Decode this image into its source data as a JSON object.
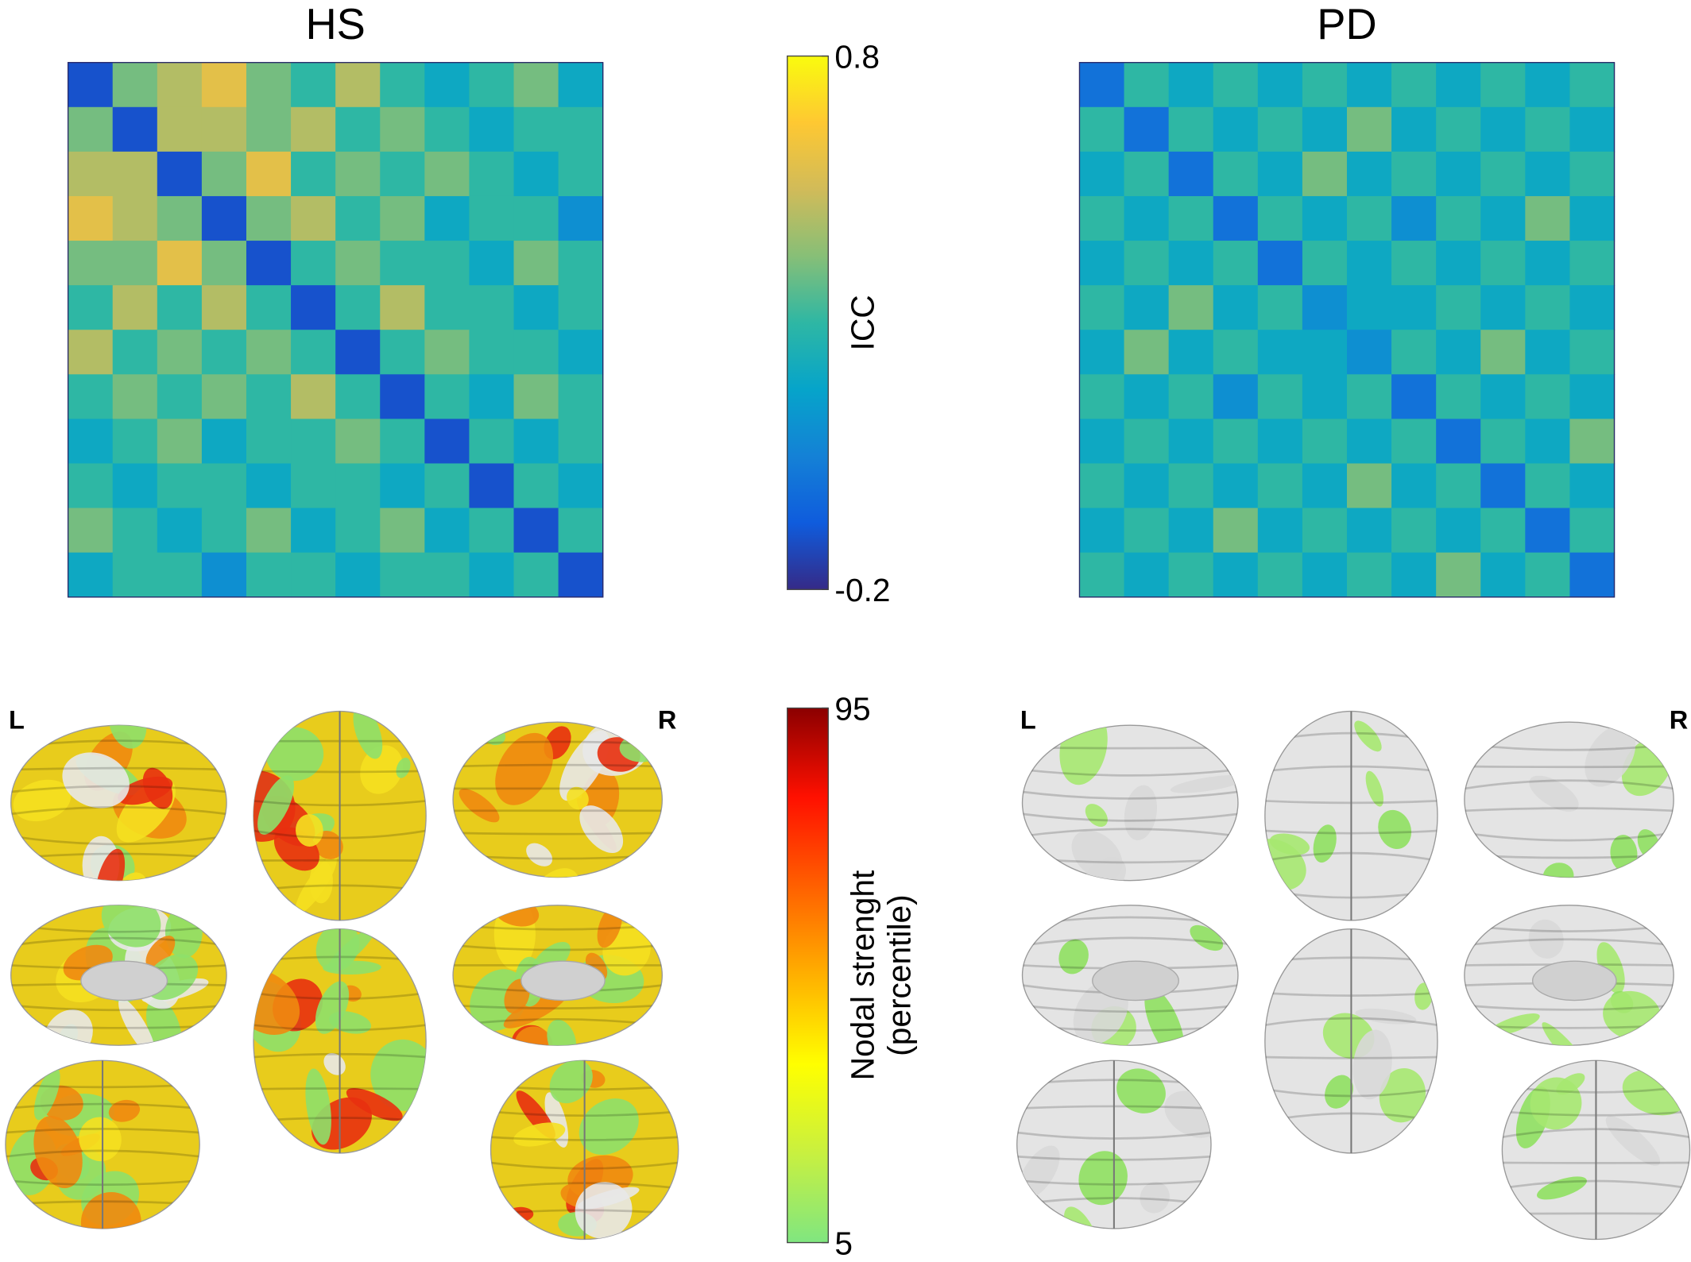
{
  "chart_data": [
    {
      "type": "heatmap",
      "title": "HS",
      "z": [
        [
          -0.1,
          0.4,
          0.5,
          0.6,
          0.4,
          0.3,
          0.5,
          0.3,
          0.2,
          0.3,
          0.4,
          0.2
        ],
        [
          0.4,
          -0.1,
          0.5,
          0.5,
          0.4,
          0.5,
          0.3,
          0.4,
          0.3,
          0.2,
          0.3,
          0.3
        ],
        [
          0.5,
          0.5,
          -0.1,
          0.4,
          0.6,
          0.3,
          0.4,
          0.3,
          0.4,
          0.3,
          0.2,
          0.3
        ],
        [
          0.6,
          0.5,
          0.4,
          -0.1,
          0.4,
          0.5,
          0.3,
          0.4,
          0.2,
          0.3,
          0.3,
          0.1
        ],
        [
          0.4,
          0.4,
          0.6,
          0.4,
          -0.1,
          0.3,
          0.4,
          0.3,
          0.3,
          0.2,
          0.4,
          0.3
        ],
        [
          0.3,
          0.5,
          0.3,
          0.5,
          0.3,
          -0.1,
          0.3,
          0.5,
          0.3,
          0.3,
          0.2,
          0.3
        ],
        [
          0.5,
          0.3,
          0.4,
          0.3,
          0.4,
          0.3,
          -0.1,
          0.3,
          0.4,
          0.3,
          0.3,
          0.2
        ],
        [
          0.3,
          0.4,
          0.3,
          0.4,
          0.3,
          0.5,
          0.3,
          -0.1,
          0.3,
          0.2,
          0.4,
          0.3
        ],
        [
          0.2,
          0.3,
          0.4,
          0.2,
          0.3,
          0.3,
          0.4,
          0.3,
          -0.1,
          0.3,
          0.2,
          0.3
        ],
        [
          0.3,
          0.2,
          0.3,
          0.3,
          0.2,
          0.3,
          0.3,
          0.2,
          0.3,
          -0.1,
          0.3,
          0.2
        ],
        [
          0.4,
          0.3,
          0.2,
          0.3,
          0.4,
          0.2,
          0.3,
          0.4,
          0.2,
          0.3,
          -0.1,
          0.3
        ],
        [
          0.2,
          0.3,
          0.3,
          0.1,
          0.3,
          0.3,
          0.2,
          0.3,
          0.3,
          0.2,
          0.3,
          -0.1
        ]
      ]
    },
    {
      "type": "heatmap",
      "title": "PD",
      "z": [
        [
          0.0,
          0.3,
          0.2,
          0.3,
          0.2,
          0.3,
          0.2,
          0.3,
          0.2,
          0.3,
          0.2,
          0.3
        ],
        [
          0.3,
          0.0,
          0.3,
          0.2,
          0.3,
          0.2,
          0.4,
          0.2,
          0.3,
          0.2,
          0.3,
          0.2
        ],
        [
          0.2,
          0.3,
          0.0,
          0.3,
          0.2,
          0.4,
          0.2,
          0.3,
          0.2,
          0.3,
          0.2,
          0.3
        ],
        [
          0.3,
          0.2,
          0.3,
          0.0,
          0.3,
          0.2,
          0.3,
          0.1,
          0.3,
          0.2,
          0.4,
          0.2
        ],
        [
          0.2,
          0.3,
          0.2,
          0.3,
          0.0,
          0.3,
          0.2,
          0.3,
          0.2,
          0.3,
          0.2,
          0.3
        ],
        [
          0.3,
          0.2,
          0.4,
          0.2,
          0.3,
          0.1,
          0.2,
          0.2,
          0.3,
          0.2,
          0.3,
          0.2
        ],
        [
          0.2,
          0.4,
          0.2,
          0.3,
          0.2,
          0.2,
          0.1,
          0.3,
          0.2,
          0.4,
          0.2,
          0.3
        ],
        [
          0.3,
          0.2,
          0.3,
          0.1,
          0.3,
          0.2,
          0.3,
          0.0,
          0.3,
          0.2,
          0.3,
          0.2
        ],
        [
          0.2,
          0.3,
          0.2,
          0.3,
          0.2,
          0.3,
          0.2,
          0.3,
          0.0,
          0.3,
          0.2,
          0.4
        ],
        [
          0.3,
          0.2,
          0.3,
          0.2,
          0.3,
          0.2,
          0.4,
          0.2,
          0.3,
          0.0,
          0.3,
          0.2
        ],
        [
          0.2,
          0.3,
          0.2,
          0.4,
          0.2,
          0.3,
          0.2,
          0.3,
          0.2,
          0.3,
          0.0,
          0.3
        ],
        [
          0.3,
          0.2,
          0.3,
          0.2,
          0.3,
          0.2,
          0.3,
          0.2,
          0.4,
          0.2,
          0.3,
          0.0
        ]
      ]
    }
  ],
  "colorbars": [
    {
      "label": "ICC",
      "lim": [
        -0.2,
        0.8
      ],
      "ticks": [
        -0.2,
        0.8
      ],
      "colors": [
        "#352a87",
        "#0f5cdd",
        "#1481d6",
        "#06a4ca",
        "#2eb7a4",
        "#87bf77",
        "#d1bb59",
        "#fec832",
        "#f9fb0e"
      ]
    },
    {
      "label": [
        "Nodal strenght",
        "(percentile)"
      ],
      "lim": [
        5,
        95
      ],
      "ticks": [
        5,
        95
      ],
      "colors": [
        "#80e680",
        "#c8f040",
        "#ffff00",
        "#ffb000",
        "#ff6000",
        "#ff1000",
        "#8b0000"
      ]
    }
  ],
  "brains": [
    {
      "left": "L",
      "right": "R"
    },
    {
      "left": "L",
      "right": "R"
    }
  ]
}
